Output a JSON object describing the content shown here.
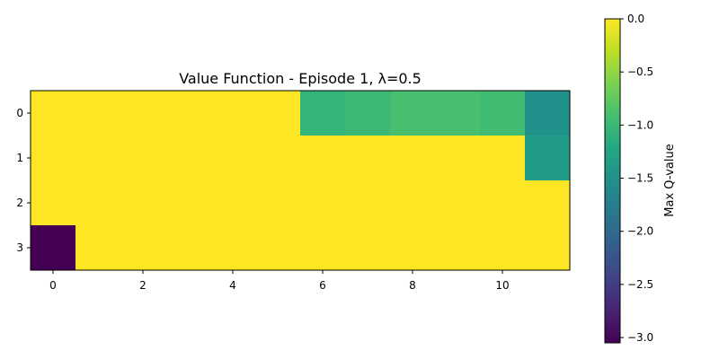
{
  "chart_data": {
    "type": "heatmap",
    "title": "Value Function - Episode 1, λ=0.5",
    "xlabel": "",
    "ylabel": "",
    "colorbar_label": "Max Q-value",
    "colormap": "viridis",
    "vmin": -3.05,
    "vmax": 0.0,
    "rows": 4,
    "cols": 12,
    "x_ticks": [
      0,
      2,
      4,
      6,
      8,
      10
    ],
    "y_ticks": [
      0,
      1,
      2,
      3
    ],
    "colorbar_ticks": [
      0.0,
      -0.5,
      -1.0,
      -1.5,
      -2.0,
      -2.5,
      -3.0
    ],
    "colorbar_tick_labels": [
      "0.0",
      "−0.5",
      "−1.0",
      "−1.5",
      "−2.0",
      "−2.5",
      "−3.0"
    ],
    "values": [
      [
        0,
        0,
        0,
        0,
        0,
        0,
        -1.05,
        -1.0,
        -0.9,
        -0.9,
        -0.95,
        -1.5
      ],
      [
        0,
        0,
        0,
        0,
        0,
        0,
        0,
        0,
        0,
        0,
        0,
        -1.35
      ],
      [
        0,
        0,
        0,
        0,
        0,
        0,
        0,
        0,
        0,
        0,
        0,
        0
      ],
      [
        -3.05,
        0,
        0,
        0,
        0,
        0,
        0,
        0,
        0,
        0,
        0,
        0
      ]
    ]
  }
}
